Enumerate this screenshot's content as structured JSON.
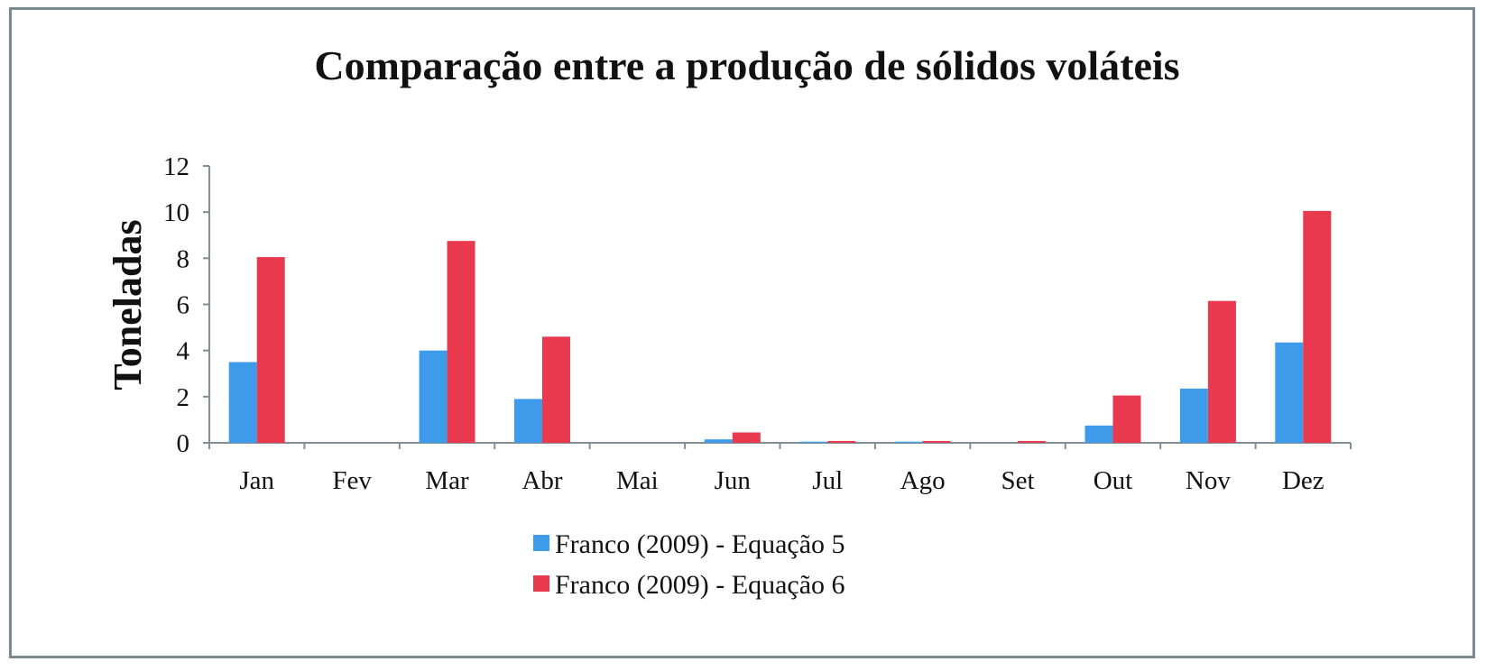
{
  "chart_data": {
    "type": "bar",
    "title": "Comparação entre a produção de sólidos voláteis",
    "xlabel": "",
    "ylabel": "Toneladas",
    "ylim": [
      0,
      12
    ],
    "yticks": [
      "0",
      "2",
      "4",
      "6",
      "8",
      "10",
      "12"
    ],
    "grid": false,
    "legend_position": "bottom",
    "categories": [
      "Jan",
      "Fev",
      "Mar",
      "Abr",
      "Mai",
      "Jun",
      "Jul",
      "Ago",
      "Set",
      "Out",
      "Nov",
      "Dez"
    ],
    "series": [
      {
        "name": "Franco (2009) - Equação 5",
        "color": "#3d9be9",
        "values": [
          3.5,
          0,
          4.0,
          1.9,
          0,
          0.15,
          0.05,
          0.05,
          0,
          0.75,
          2.35,
          4.35
        ]
      },
      {
        "name": "Franco (2009) - Equação 6",
        "color": "#e8394f",
        "values": [
          8.05,
          0,
          8.75,
          4.6,
          0,
          0.45,
          0.08,
          0.08,
          0.08,
          2.05,
          6.15,
          10.05
        ]
      }
    ]
  }
}
